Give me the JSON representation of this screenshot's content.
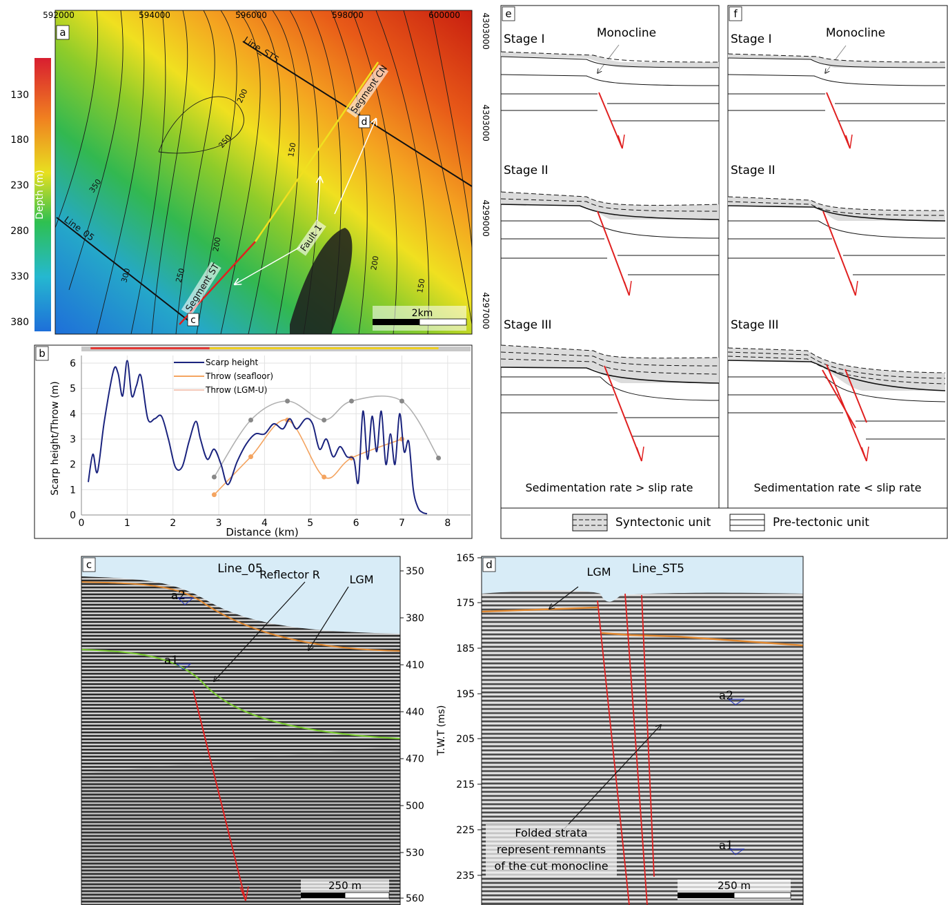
{
  "panel_a": {
    "letter": "a",
    "x_ticks": [
      "592000",
      "594000",
      "596000",
      "598000",
      "600000"
    ],
    "y_ticks": [
      "4303000",
      "4303000",
      "4299000",
      "4297000"
    ],
    "colorbar_title": "Depth (m)",
    "colorbar_ticks": [
      "130",
      "180",
      "230",
      "280",
      "330",
      "380"
    ],
    "line_st5": "Line_ST5",
    "line_05": "Line_05",
    "segment_cn": "Segment CN",
    "segment_st": "Segment ST",
    "fault": "Fault 1",
    "label_c": "c",
    "label_d": "d",
    "contours": [
      "350",
      "300",
      "250",
      "200",
      "200",
      "150",
      "250",
      "200",
      "150",
      "150"
    ],
    "scale": "2km"
  },
  "panel_b": {
    "letter": "b",
    "ylabel": "Scarp height/Throw (m)",
    "xlabel": "Distance (km)",
    "legend": [
      "Scarp height",
      "Throw (seafloor)",
      "Throw (LGM-U)"
    ]
  },
  "panel_c": {
    "letter": "c",
    "title": "Line_05",
    "reflector": "Reflector R",
    "lgm": "LGM",
    "a2": "a2",
    "a1": "a1",
    "scale": "250 m",
    "twt_ticks": [
      "350",
      "380",
      "410",
      "440",
      "470",
      "500",
      "530",
      "560"
    ]
  },
  "panel_d": {
    "letter": "d",
    "title": "Line_ST5",
    "lgm": "LGM",
    "a2": "a2",
    "a1": "a1",
    "note": [
      "Folded strata",
      "represent remnants",
      "of the cut monocline"
    ],
    "scale": "250 m",
    "twt_label": "T.W.T (ms)",
    "twt_ticks": [
      "165",
      "175",
      "185",
      "195",
      "205",
      "215",
      "225",
      "235"
    ]
  },
  "panel_e": {
    "letter": "e",
    "stages": [
      "Stage I",
      "Stage II",
      "Stage III"
    ],
    "monocline": "Monocline",
    "caption": "Sedimentation rate > slip rate"
  },
  "panel_f": {
    "letter": "f",
    "stages": [
      "Stage I",
      "Stage II",
      "Stage III"
    ],
    "monocline": "Monocline",
    "caption": "Sedimentation rate < slip rate"
  },
  "legend_units": {
    "syn": "Syntectonic unit",
    "pre": "Pre-tectonic unit"
  },
  "chart_data": {
    "type": "line",
    "xlabel": "Distance (km)",
    "ylabel": "Scarp height/Throw (m)",
    "xlim": [
      0,
      8.5
    ],
    "ylim": [
      0,
      6.3
    ],
    "x_ticks": [
      0,
      1,
      2,
      3,
      4,
      5,
      6,
      7,
      8
    ],
    "y_ticks": [
      0,
      1,
      2,
      3,
      4,
      5,
      6
    ],
    "legend_position": "top-center",
    "series": [
      {
        "name": "Scarp height",
        "color": "#1a237e",
        "smooth": false,
        "markers": false,
        "x": [
          0.15,
          0.25,
          0.35,
          0.5,
          0.7,
          0.8,
          0.9,
          1.0,
          1.1,
          1.2,
          1.3,
          1.45,
          1.6,
          1.75,
          1.9,
          2.05,
          2.2,
          2.35,
          2.5,
          2.6,
          2.75,
          2.9,
          3.05,
          3.2,
          3.4,
          3.6,
          3.8,
          4.0,
          4.2,
          4.4,
          4.55,
          4.7,
          4.9,
          5.05,
          5.2,
          5.35,
          5.5,
          5.65,
          5.8,
          5.95,
          6.05,
          6.15,
          6.25,
          6.35,
          6.45,
          6.55,
          6.65,
          6.75,
          6.85,
          6.95,
          7.05,
          7.15,
          7.25,
          7.35,
          7.45,
          7.55
        ],
        "y": [
          1.3,
          2.4,
          1.7,
          3.7,
          5.7,
          5.6,
          4.7,
          6.1,
          4.7,
          5.1,
          5.5,
          3.8,
          3.8,
          3.9,
          3.0,
          1.9,
          1.9,
          2.9,
          3.7,
          3.0,
          2.2,
          2.6,
          2.0,
          1.2,
          2.1,
          2.8,
          3.2,
          3.2,
          3.6,
          3.4,
          3.8,
          3.4,
          3.8,
          3.6,
          2.6,
          3.0,
          2.3,
          2.7,
          2.3,
          2.2,
          1.3,
          4.1,
          2.2,
          3.9,
          2.5,
          4.1,
          2.0,
          3.2,
          2.0,
          4.0,
          2.5,
          2.9,
          1.0,
          0.3,
          0.1,
          0.05
        ]
      },
      {
        "name": "Throw (seafloor)",
        "color": "#f4a460",
        "smooth": true,
        "markers": true,
        "x": [
          2.9,
          3.7,
          4.5,
          5.3,
          5.9,
          7.0
        ],
        "y": [
          0.8,
          2.3,
          3.75,
          1.5,
          2.25,
          3.0
        ]
      },
      {
        "name": "Throw (LGM-U)",
        "color": "#b0b0b0",
        "smooth": true,
        "markers": true,
        "x": [
          2.9,
          3.7,
          4.5,
          5.3,
          5.9,
          7.0,
          7.8
        ],
        "y": [
          1.5,
          3.75,
          4.5,
          3.75,
          4.5,
          4.5,
          2.25
        ]
      }
    ],
    "segments_bar": [
      {
        "from": 0.2,
        "to": 2.8,
        "color": "#e53935"
      },
      {
        "from": 2.8,
        "to": 7.8,
        "color": "#f0d020"
      }
    ]
  }
}
